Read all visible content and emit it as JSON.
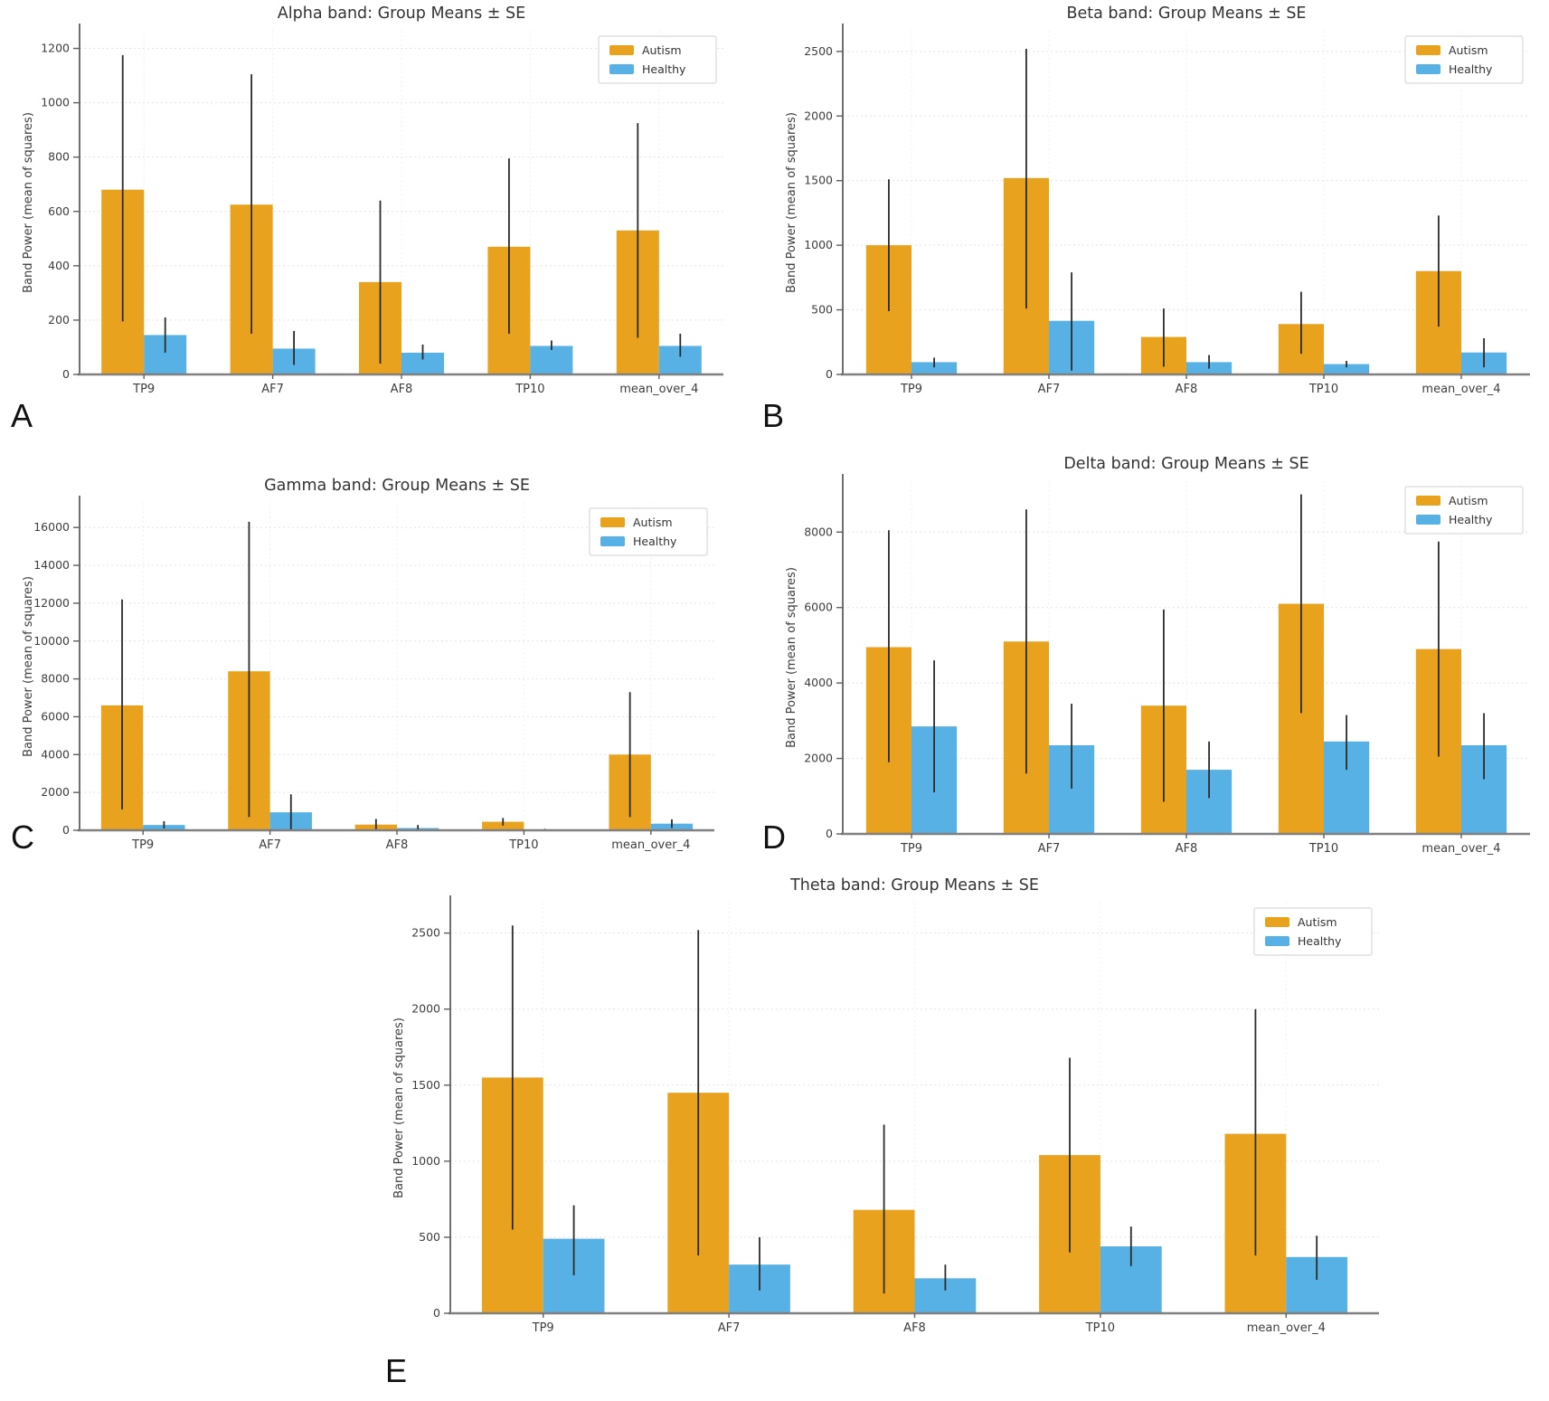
{
  "figure": {
    "background": "#ffffff",
    "error_bar_color": "#2b2b2b",
    "autism_color": "#E8A21D",
    "healthy_color": "#58B1E4",
    "legend_labels": [
      "Autism",
      "Healthy"
    ]
  },
  "panel_letters": [
    "A",
    "B",
    "C",
    "D",
    "E"
  ],
  "chart_data": [
    {
      "type": "bar",
      "panel_label": "A",
      "title": "Alpha band: Group Means ± SE",
      "ylabel": "Band Power (mean of squares)",
      "xlabel": "",
      "grid": true,
      "legend_position": "upper right",
      "categories": [
        "TP9",
        "AF7",
        "AF8",
        "TP10",
        "mean_over_4"
      ],
      "yticks": [
        0,
        200,
        400,
        600,
        800,
        1000,
        1200
      ],
      "ylim": [
        0,
        1265
      ],
      "series": [
        {
          "name": "Autism",
          "color": "#E8A21D",
          "values": [
            680,
            625,
            340,
            470,
            530
          ],
          "err_lo": [
            195,
            150,
            40,
            150,
            135
          ],
          "err_hi": [
            1175,
            1105,
            640,
            795,
            925
          ]
        },
        {
          "name": "Healthy",
          "color": "#58B1E4",
          "values": [
            145,
            95,
            80,
            105,
            105
          ],
          "err_lo": [
            80,
            35,
            55,
            90,
            65
          ],
          "err_hi": [
            210,
            160,
            110,
            125,
            150
          ]
        }
      ]
    },
    {
      "type": "bar",
      "panel_label": "B",
      "title": "Beta band: Group Means ± SE",
      "ylabel": "Band Power (mean of squares)",
      "xlabel": "",
      "grid": true,
      "legend_position": "upper right",
      "categories": [
        "TP9",
        "AF7",
        "AF8",
        "TP10",
        "mean_over_4"
      ],
      "yticks": [
        0,
        500,
        1000,
        1500,
        2000,
        2500
      ],
      "ylim": [
        0,
        2660
      ],
      "series": [
        {
          "name": "Autism",
          "color": "#E8A21D",
          "values": [
            1000,
            1520,
            290,
            390,
            800
          ],
          "err_lo": [
            490,
            510,
            60,
            160,
            370
          ],
          "err_hi": [
            1510,
            2520,
            510,
            640,
            1230
          ]
        },
        {
          "name": "Healthy",
          "color": "#58B1E4",
          "values": [
            95,
            415,
            95,
            80,
            170
          ],
          "err_lo": [
            55,
            30,
            45,
            55,
            55
          ],
          "err_hi": [
            130,
            790,
            150,
            105,
            280
          ]
        }
      ]
    },
    {
      "type": "bar",
      "panel_label": "C",
      "title": "Gamma band: Group Means ± SE",
      "ylabel": "Band Power (mean of squares)",
      "xlabel": "",
      "grid": true,
      "legend_position": "upper right",
      "categories": [
        "TP9",
        "AF7",
        "AF8",
        "TP10",
        "mean_over_4"
      ],
      "yticks": [
        0,
        2000,
        4000,
        6000,
        8000,
        10000,
        12000,
        14000,
        16000
      ],
      "ylim": [
        0,
        17300
      ],
      "series": [
        {
          "name": "Autism",
          "color": "#E8A21D",
          "values": [
            6600,
            8400,
            300,
            450,
            4000
          ],
          "err_lo": [
            1100,
            700,
            50,
            250,
            700
          ],
          "err_hi": [
            12200,
            16300,
            600,
            650,
            7300
          ]
        },
        {
          "name": "Healthy",
          "color": "#58B1E4",
          "values": [
            280,
            950,
            120,
            40,
            350
          ],
          "err_lo": [
            100,
            30,
            10,
            5,
            120
          ],
          "err_hi": [
            480,
            1900,
            280,
            80,
            580
          ]
        }
      ]
    },
    {
      "type": "bar",
      "panel_label": "D",
      "title": "Delta band: Group Means ± SE",
      "ylabel": "Band Power (mean of squares)",
      "xlabel": "",
      "grid": true,
      "legend_position": "upper right",
      "categories": [
        "TP9",
        "AF7",
        "AF8",
        "TP10",
        "mean_over_4"
      ],
      "yticks": [
        0,
        2000,
        4000,
        6000,
        8000
      ],
      "ylim": [
        0,
        9350
      ],
      "series": [
        {
          "name": "Autism",
          "color": "#E8A21D",
          "values": [
            4950,
            5100,
            3400,
            6100,
            4900
          ],
          "err_lo": [
            1900,
            1600,
            850,
            3200,
            2050
          ],
          "err_hi": [
            8050,
            8600,
            5950,
            9000,
            7750
          ]
        },
        {
          "name": "Healthy",
          "color": "#58B1E4",
          "values": [
            2850,
            2350,
            1700,
            2450,
            2350
          ],
          "err_lo": [
            1100,
            1200,
            950,
            1700,
            1450
          ],
          "err_hi": [
            4600,
            3450,
            2450,
            3150,
            3200
          ]
        }
      ]
    },
    {
      "type": "bar",
      "panel_label": "E",
      "title": "Theta band: Group Means ± SE",
      "ylabel": "Band Power (mean of squares)",
      "xlabel": "",
      "grid": true,
      "legend_position": "upper right",
      "categories": [
        "TP9",
        "AF7",
        "AF8",
        "TP10",
        "mean_over_4"
      ],
      "yticks": [
        0,
        500,
        1000,
        1500,
        2000,
        2500
      ],
      "ylim": [
        0,
        2700
      ],
      "series": [
        {
          "name": "Autism",
          "color": "#E8A21D",
          "values": [
            1550,
            1450,
            680,
            1040,
            1180
          ],
          "err_lo": [
            550,
            380,
            130,
            400,
            380
          ],
          "err_hi": [
            2550,
            2520,
            1240,
            1680,
            2000
          ]
        },
        {
          "name": "Healthy",
          "color": "#58B1E4",
          "values": [
            490,
            320,
            230,
            440,
            370
          ],
          "err_lo": [
            250,
            150,
            150,
            310,
            220
          ],
          "err_hi": [
            710,
            500,
            320,
            570,
            510
          ]
        }
      ]
    }
  ]
}
